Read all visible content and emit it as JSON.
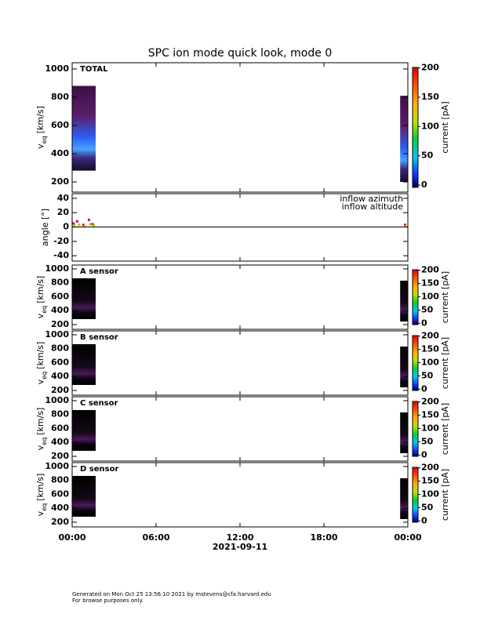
{
  "title": "SPC ion mode quick look, mode 0",
  "footer": [
    "Generated on Mon Oct 25 13:56:10 2021 by mstevens@cfa.harvard.edu",
    "For browse purposes only."
  ],
  "chart_data": [
    {
      "type": "heatmap",
      "label": "TOTAL",
      "ylabel": {
        "symbol": "v",
        "subscript": "eq",
        "unit": "[km/s]"
      },
      "xlim": [
        0,
        24
      ],
      "ylim": [
        128,
        1044
      ],
      "yticks": [
        200,
        400,
        600,
        800,
        1000
      ],
      "blocks": [
        {
          "x": [
            0,
            1.68
          ],
          "y": [
            280,
            880
          ]
        },
        {
          "x": [
            23.45,
            24
          ],
          "y": [
            200,
            810
          ]
        }
      ],
      "colorbar": {
        "label": "current [pA]",
        "lim": [
          -4,
          201
        ],
        "ticks": [
          0,
          50,
          100,
          150,
          200
        ]
      }
    },
    {
      "type": "scatter",
      "ylabel": "angle [°]",
      "xlim": [
        0,
        24
      ],
      "ylim": [
        -47.5,
        46.5
      ],
      "yticks": [
        -40,
        -20,
        0,
        20,
        40
      ],
      "series": [
        {
          "name": "inflow azimuth",
          "color": "#e8001c",
          "x": [
            0.1,
            0.35,
            0.8,
            1.2,
            1.45,
            23.8
          ],
          "values": [
            5,
            8,
            3,
            10,
            4,
            3
          ]
        },
        {
          "name": "inflow altitude",
          "color": "#8fd400",
          "x": [
            0.15,
            0.5,
            0.9,
            1.3,
            1.55,
            23.85
          ],
          "values": [
            2,
            3,
            1,
            4,
            2,
            1
          ]
        }
      ]
    },
    {
      "type": "heatmap",
      "label": "A sensor",
      "ylabel": {
        "symbol": "v",
        "subscript": "eq",
        "unit": "[km/s]"
      },
      "xlim": [
        0,
        24
      ],
      "ylim": [
        132,
        1056
      ],
      "yticks": [
        200,
        400,
        600,
        800,
        1000
      ],
      "blocks": [
        {
          "x": [
            0,
            1.68
          ],
          "y": [
            279,
            865
          ]
        },
        {
          "x": [
            23.45,
            24
          ],
          "y": [
            245,
            831
          ]
        }
      ],
      "colorbar": {
        "label": "current [pA]",
        "lim": [
          -5,
          202
        ],
        "ticks": [
          0,
          50,
          100,
          150,
          200
        ]
      }
    },
    {
      "type": "heatmap",
      "label": "B sensor",
      "ylabel": {
        "symbol": "v",
        "subscript": "eq",
        "unit": "[km/s]"
      },
      "xlim": [
        0,
        24
      ],
      "ylim": [
        132,
        1056
      ],
      "yticks": [
        200,
        400,
        600,
        800,
        1000
      ],
      "blocks": [
        {
          "x": [
            0,
            1.68
          ],
          "y": [
            279,
            865
          ]
        },
        {
          "x": [
            23.45,
            24
          ],
          "y": [
            245,
            831
          ]
        }
      ],
      "colorbar": {
        "label": "current [pA]",
        "lim": [
          -5,
          202
        ],
        "ticks": [
          0,
          50,
          100,
          150,
          200
        ]
      }
    },
    {
      "type": "heatmap",
      "label": "C sensor",
      "ylabel": {
        "symbol": "v",
        "subscript": "eq",
        "unit": "[km/s]"
      },
      "xlim": [
        0,
        24
      ],
      "ylim": [
        132,
        1056
      ],
      "yticks": [
        200,
        400,
        600,
        800,
        1000
      ],
      "blocks": [
        {
          "x": [
            0,
            1.68
          ],
          "y": [
            279,
            865
          ]
        },
        {
          "x": [
            23.45,
            24
          ],
          "y": [
            245,
            831
          ]
        }
      ],
      "colorbar": {
        "label": "current [pA]",
        "lim": [
          -5,
          202
        ],
        "ticks": [
          0,
          50,
          100,
          150,
          200
        ]
      }
    },
    {
      "type": "heatmap",
      "label": "D sensor",
      "ylabel": {
        "symbol": "v",
        "subscript": "eq",
        "unit": "[km/s]"
      },
      "xlim": [
        0,
        24
      ],
      "ylim": [
        132,
        1056
      ],
      "yticks": [
        200,
        400,
        600,
        800,
        1000
      ],
      "blocks": [
        {
          "x": [
            0,
            1.68
          ],
          "y": [
            279,
            865
          ]
        },
        {
          "x": [
            23.45,
            24
          ],
          "y": [
            245,
            831
          ]
        }
      ],
      "colorbar": {
        "label": "current [pA]",
        "lim": [
          -5,
          202
        ],
        "ticks": [
          0,
          50,
          100,
          150,
          200
        ]
      },
      "xlabel": "2021-09-11",
      "xticks": [
        {
          "value": 0,
          "label": "00:00"
        },
        {
          "value": 6,
          "label": "06:00"
        },
        {
          "value": 12,
          "label": "12:00"
        },
        {
          "value": 18,
          "label": "18:00"
        },
        {
          "value": 24,
          "label": "00:00"
        }
      ]
    }
  ]
}
